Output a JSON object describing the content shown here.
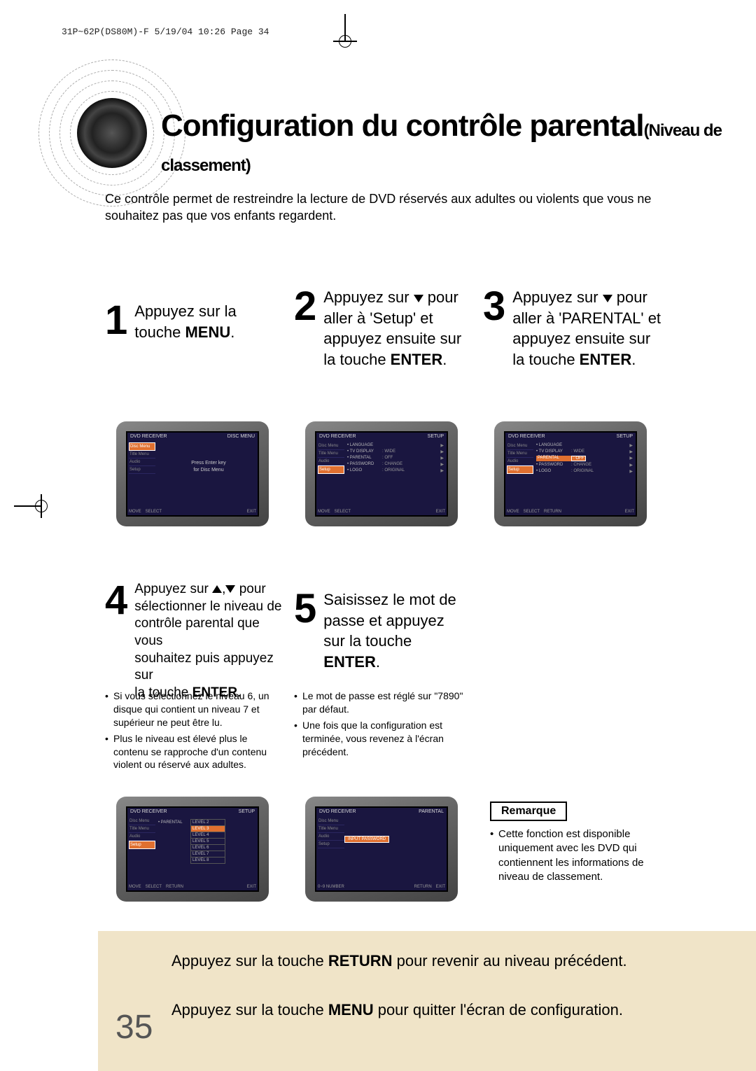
{
  "page_header": "31P~62P(DS80M)-F  5/19/04 10:26  Page 34",
  "title_main": "Configuration du contrôle parental",
  "title_sub": "(Niveau de classement)",
  "intro": "Ce contrôle permet de restreindre la lecture de DVD réservés aux adultes ou violents que vous ne souhaitez pas que vos enfants regardent.",
  "steps": {
    "s1": {
      "num": "1",
      "text_pre": "Appuyez sur la touche ",
      "bold": "MENU",
      "text_post": "."
    },
    "s2": {
      "num": "2",
      "line1": "Appuyez sur ",
      "line1_post": " pour",
      "line2": "aller à 'Setup' et",
      "line3": "appuyez ensuite sur",
      "line4_pre": "la touche ",
      "line4_bold": "ENTER",
      "line4_post": "."
    },
    "s3": {
      "num": "3",
      "line1": "Appuyez sur ",
      "line1_post": " pour",
      "line2": "aller à 'PARENTAL' et",
      "line3": "appuyez ensuite sur",
      "line4_pre": "la touche ",
      "line4_bold": "ENTER",
      "line4_post": "."
    },
    "s4": {
      "num": "4",
      "line1": "Appuyez sur ",
      "line1_mid": ",",
      "line1_post": " pour",
      "line2": "sélectionner le niveau de",
      "line3": "contrôle parental que vous",
      "line4": "souhaitez puis appuyez sur",
      "line5_pre": "la touche ",
      "line5_bold": "ENTER",
      "line5_post": "."
    },
    "s5": {
      "num": "5",
      "line1": "Saisissez le mot de",
      "line2": "passe et appuyez",
      "line3": "sur la touche",
      "line4_bold": "ENTER",
      "line4_post": "."
    }
  },
  "bullets4": [
    "Si vous sélectionnez le niveau 6, un disque qui contient un niveau 7 et supérieur ne peut être lu.",
    "Plus le niveau est élevé plus le contenu se rapproche d'un contenu violent ou réservé aux adultes."
  ],
  "bullets5": [
    "Le mot de passe est réglé sur \"7890\" par défaut.",
    "Une fois que la configuration est terminée, vous revenez à l'écran précédent."
  ],
  "remarque": {
    "label": "Remarque",
    "text": "Cette fonction est disponible uniquement avec les DVD qui contiennent les informations de niveau de classement."
  },
  "footer": {
    "line1_pre": "Appuyez sur la touche ",
    "line1_bold": "RETURN",
    "line1_post": " pour revenir au niveau précédent.",
    "line2_pre": "Appuyez sur la touche ",
    "line2_bold": "MENU",
    "line2_post": " pour quitter l'écran de configuration."
  },
  "page_number": "35",
  "tv": {
    "sidebar": [
      "Disc Menu",
      "Title Menu",
      "Audio",
      "Setup"
    ],
    "screen1": {
      "left_label": "DVD RECEIVER",
      "right_label": "DISC MENU",
      "center1": "Press Enter key",
      "center2": "for Disc Menu",
      "footer": [
        "MOVE",
        "SELECT",
        "EXIT"
      ]
    },
    "screen2": {
      "left_label": "DVD RECEIVER",
      "right_label": "SETUP",
      "rows": [
        {
          "lbl": "• LANGUAGE",
          "val": ""
        },
        {
          "lbl": "• TV DISPLAY",
          "val": ": WIDE"
        },
        {
          "lbl": "• PARENTAL",
          "val": ": OFF"
        },
        {
          "lbl": "• PASSWORD",
          "val": ": CHANGE"
        },
        {
          "lbl": "• LOGO",
          "val": ": ORIGINAL"
        }
      ],
      "footer": [
        "MOVE",
        "SELECT",
        "EXIT"
      ]
    },
    "screen3": {
      "left_label": "DVD RECEIVER",
      "right_label": "SETUP",
      "rows": [
        {
          "lbl": "• LANGUAGE",
          "val": ""
        },
        {
          "lbl": "• TV DISPLAY",
          "val": ": WIDE"
        },
        {
          "lbl": "PARENTAL",
          "val": ": OFF",
          "hl": true
        },
        {
          "lbl": "• PASSWORD",
          "val": ": CHANGE"
        },
        {
          "lbl": "• LOGO",
          "val": ": ORIGINAL"
        }
      ],
      "footer": [
        "MOVE",
        "SELECT",
        "RETURN",
        "EXIT"
      ]
    },
    "screen4": {
      "left_label": "DVD RECEIVER",
      "right_label": "SETUP",
      "parental_label": "• PARENTAL",
      "levels": [
        "LEVEL 2",
        "LEVEL 3",
        "LEVEL 4",
        "LEVEL 5",
        "LEVEL 6",
        "LEVEL 7",
        "LEVEL 8"
      ],
      "hl_index": 1,
      "footer": [
        "MOVE",
        "SELECT",
        "RETURN",
        "EXIT"
      ]
    },
    "screen5": {
      "left_label": "DVD RECEIVER",
      "right_label": "PARENTAL",
      "password": "INPUT PASSWORD",
      "footer": [
        "0~9 NUMBER",
        "RETURN",
        "EXIT"
      ]
    }
  },
  "colors": {
    "footer_band": "#f0e4c8",
    "tv_bg": "#1a1640",
    "tv_highlight": "#e07030"
  }
}
